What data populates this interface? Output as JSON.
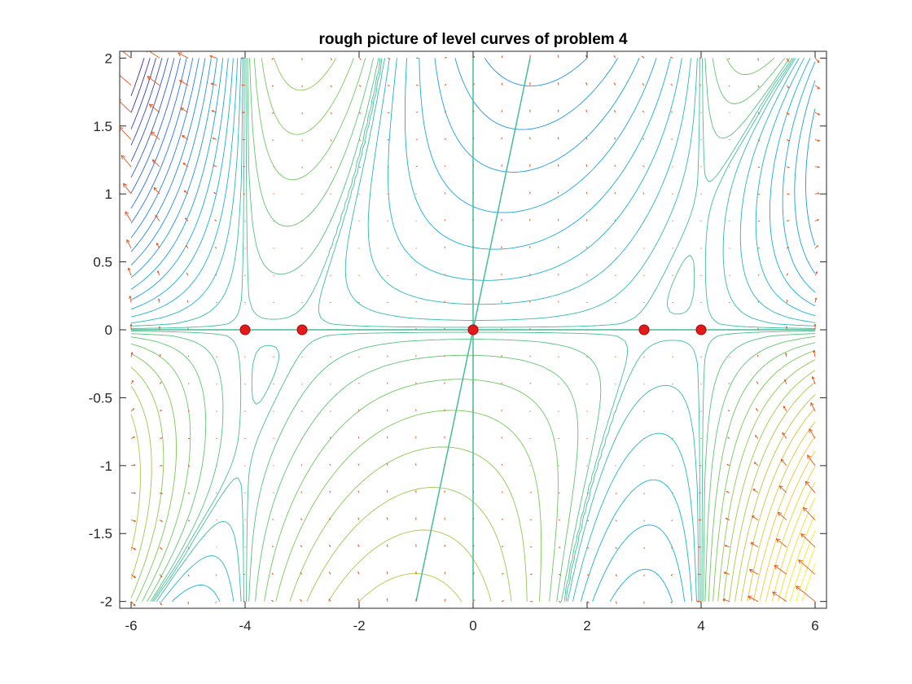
{
  "chart_data": {
    "type": "contour",
    "title": "rough picture of level curves of problem 4",
    "xlabel": "",
    "ylabel": "",
    "xlim": [
      -6.2,
      6.2
    ],
    "ylim": [
      -2.05,
      2.05
    ],
    "x_ticks": [
      -6,
      -4,
      -2,
      0,
      2,
      4,
      6
    ],
    "y_ticks": [
      -2,
      -1.5,
      -1,
      -0.5,
      0,
      0.5,
      1,
      1.5,
      2
    ],
    "x_tick_labels": [
      "-6",
      "-4",
      "-2",
      "0",
      "2",
      "4",
      "6"
    ],
    "y_tick_labels": [
      "-2",
      "-1.5",
      "-1",
      "-0.5",
      "0",
      "0.5",
      "1",
      "1.5",
      "2"
    ],
    "grid": false,
    "domain": {
      "x": [
        -6,
        6
      ],
      "y": [
        -2,
        2
      ]
    },
    "contour_levels": 40,
    "colormap": "parula-like (blue → teal → green → yellow)",
    "critical_points": [
      {
        "x": -4,
        "y": 0
      },
      {
        "x": -3,
        "y": 0
      },
      {
        "x": 0,
        "y": 0
      },
      {
        "x": 3,
        "y": 0
      },
      {
        "x": 4,
        "y": 0
      }
    ],
    "critical_point_color": "#e31a1c",
    "special_curves": [
      {
        "kind": "line",
        "points": [
          [
            0,
            -2
          ],
          [
            0,
            2
          ]
        ]
      },
      {
        "kind": "line",
        "points": [
          [
            -6,
            0
          ],
          [
            6,
            0
          ]
        ]
      },
      {
        "kind": "line",
        "points": [
          [
            -1,
            -2
          ],
          [
            1,
            2
          ]
        ]
      }
    ],
    "quiver_color": "#e8541c",
    "quiver_grid": {
      "x_step": 0.5,
      "y_step": 0.2
    }
  }
}
